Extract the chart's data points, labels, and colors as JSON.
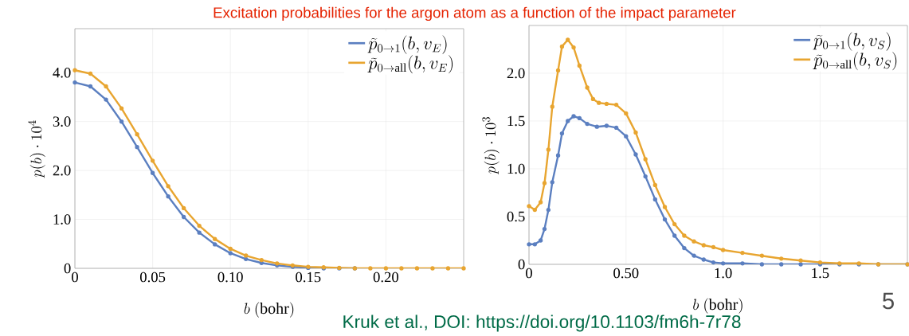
{
  "chart_data": [
    {
      "type": "line",
      "title": "Excitation probabilities for the argon atom as a function of the impact parameter",
      "xlabel": "b\\ (\\mathrm{bohr})",
      "ylabel": "p(b)\\cdot 10^4",
      "xlim": [
        0,
        0.25
      ],
      "ylim": [
        0,
        4.9
      ],
      "xticks": [
        0,
        {
          "value": 0.05,
          "label": "0.05"
        },
        {
          "value": 0.1,
          "label": "0.10"
        },
        {
          "value": 0.15,
          "label": "0.15"
        },
        {
          "value": 0.2,
          "label": "0.20"
        }
      ],
      "yticks": [
        0,
        {
          "value": 1,
          "label": "1.0"
        },
        {
          "value": 2,
          "label": "2.0"
        },
        {
          "value": 3,
          "label": "3.0"
        },
        {
          "value": 4,
          "label": "4.0"
        }
      ],
      "grid": true,
      "legend": "top right",
      "marker": "circle",
      "line_style": "solid",
      "x": [
        0,
        0.01,
        0.02,
        0.03,
        0.04,
        0.05,
        0.06,
        0.07,
        0.08,
        0.09,
        0.1,
        0.11,
        0.12,
        0.13,
        0.14,
        0.15,
        0.16,
        0.17,
        0.18,
        0.19,
        0.2,
        0.21,
        0.22,
        0.23,
        0.24,
        0.25
      ],
      "series": [
        {
          "name": "\\widetilde{p}_{0\\to 1}(b, v_E)",
          "color": "#5b7fc0",
          "values": [
            3.8,
            3.72,
            3.45,
            3.0,
            2.48,
            1.95,
            1.47,
            1.05,
            0.73,
            0.49,
            0.31,
            0.19,
            0.11,
            0.06,
            0.03,
            0.01,
            0,
            0,
            0,
            null,
            null,
            null,
            null,
            null,
            null,
            null
          ]
        },
        {
          "name": "\\widetilde{p}_{0\\to \\mathrm{all}}(b, v_E)",
          "color": "#e8a530",
          "values": [
            4.05,
            3.98,
            3.72,
            3.27,
            2.74,
            2.2,
            1.68,
            1.23,
            0.87,
            0.6,
            0.4,
            0.26,
            0.17,
            0.1,
            0.06,
            0.03,
            0.02,
            0.01,
            0,
            0,
            0,
            0,
            0,
            0,
            0,
            0
          ]
        }
      ]
    },
    {
      "type": "line",
      "xlabel": "b\\ (\\mathrm{bohr})",
      "ylabel": "p(b)\\cdot 10^3",
      "xlim": [
        0,
        1.95
      ],
      "ylim": [
        0,
        2.5
      ],
      "xticks": [
        0,
        {
          "value": 0.5,
          "label": "0.50"
        },
        {
          "value": 1,
          "label": "1.0"
        },
        {
          "value": 1.5,
          "label": "1.5"
        }
      ],
      "yticks": [
        0,
        {
          "value": 0.5,
          "label": "0.5"
        },
        {
          "value": 1,
          "label": "1.0"
        },
        {
          "value": 1.5,
          "label": "1.5"
        },
        {
          "value": 2,
          "label": "2.0"
        }
      ],
      "grid": true,
      "legend": "top right",
      "marker": "circle",
      "line_style": "solid",
      "annotations": [
        "Kruk et al., DOI: https://doi.org/10.1103/fm6h-7r78",
        "5"
      ],
      "series": [
        {
          "name": "\\widetilde{p}_{0\\to 1}(b, v_S)",
          "color": "#5b7fc0",
          "x": [
            0,
            0.03,
            0.06,
            0.08,
            0.1,
            0.12,
            0.15,
            0.17,
            0.2,
            0.23,
            0.26,
            0.3,
            0.35,
            0.4,
            0.45,
            0.5,
            0.55,
            0.6,
            0.65,
            0.7,
            0.75,
            0.8,
            0.85,
            0.9,
            0.95,
            1.0,
            1.1,
            1.2,
            1.3,
            1.4,
            1.5,
            1.6,
            1.7,
            1.8,
            1.95
          ],
          "values": [
            0.21,
            0.21,
            0.25,
            0.37,
            0.57,
            0.86,
            1.14,
            1.37,
            1.5,
            1.55,
            1.53,
            1.47,
            1.44,
            1.45,
            1.43,
            1.34,
            1.15,
            0.92,
            0.68,
            0.47,
            0.3,
            0.17,
            0.09,
            0.05,
            0.02,
            0.01,
            0.01,
            0,
            0,
            0,
            0,
            0,
            0,
            0,
            0
          ]
        },
        {
          "name": "\\widetilde{p}_{0\\to \\mathrm{all}}(b, v_S)",
          "color": "#e8a530",
          "x": [
            0,
            0.03,
            0.06,
            0.08,
            0.1,
            0.12,
            0.15,
            0.17,
            0.2,
            0.23,
            0.26,
            0.3,
            0.33,
            0.36,
            0.4,
            0.45,
            0.5,
            0.55,
            0.6,
            0.65,
            0.7,
            0.75,
            0.8,
            0.85,
            0.9,
            0.95,
            1.0,
            1.1,
            1.2,
            1.3,
            1.4,
            1.5,
            1.6,
            1.7,
            1.8,
            1.95
          ],
          "values": [
            0.61,
            0.57,
            0.65,
            0.85,
            1.2,
            1.65,
            2.03,
            2.28,
            2.35,
            2.27,
            2.08,
            1.85,
            1.73,
            1.69,
            1.68,
            1.67,
            1.58,
            1.38,
            1.1,
            0.83,
            0.6,
            0.42,
            0.3,
            0.24,
            0.2,
            0.18,
            0.15,
            0.12,
            0.09,
            0.06,
            0.04,
            0.02,
            0.01,
            0.01,
            0,
            0
          ]
        }
      ]
    }
  ]
}
